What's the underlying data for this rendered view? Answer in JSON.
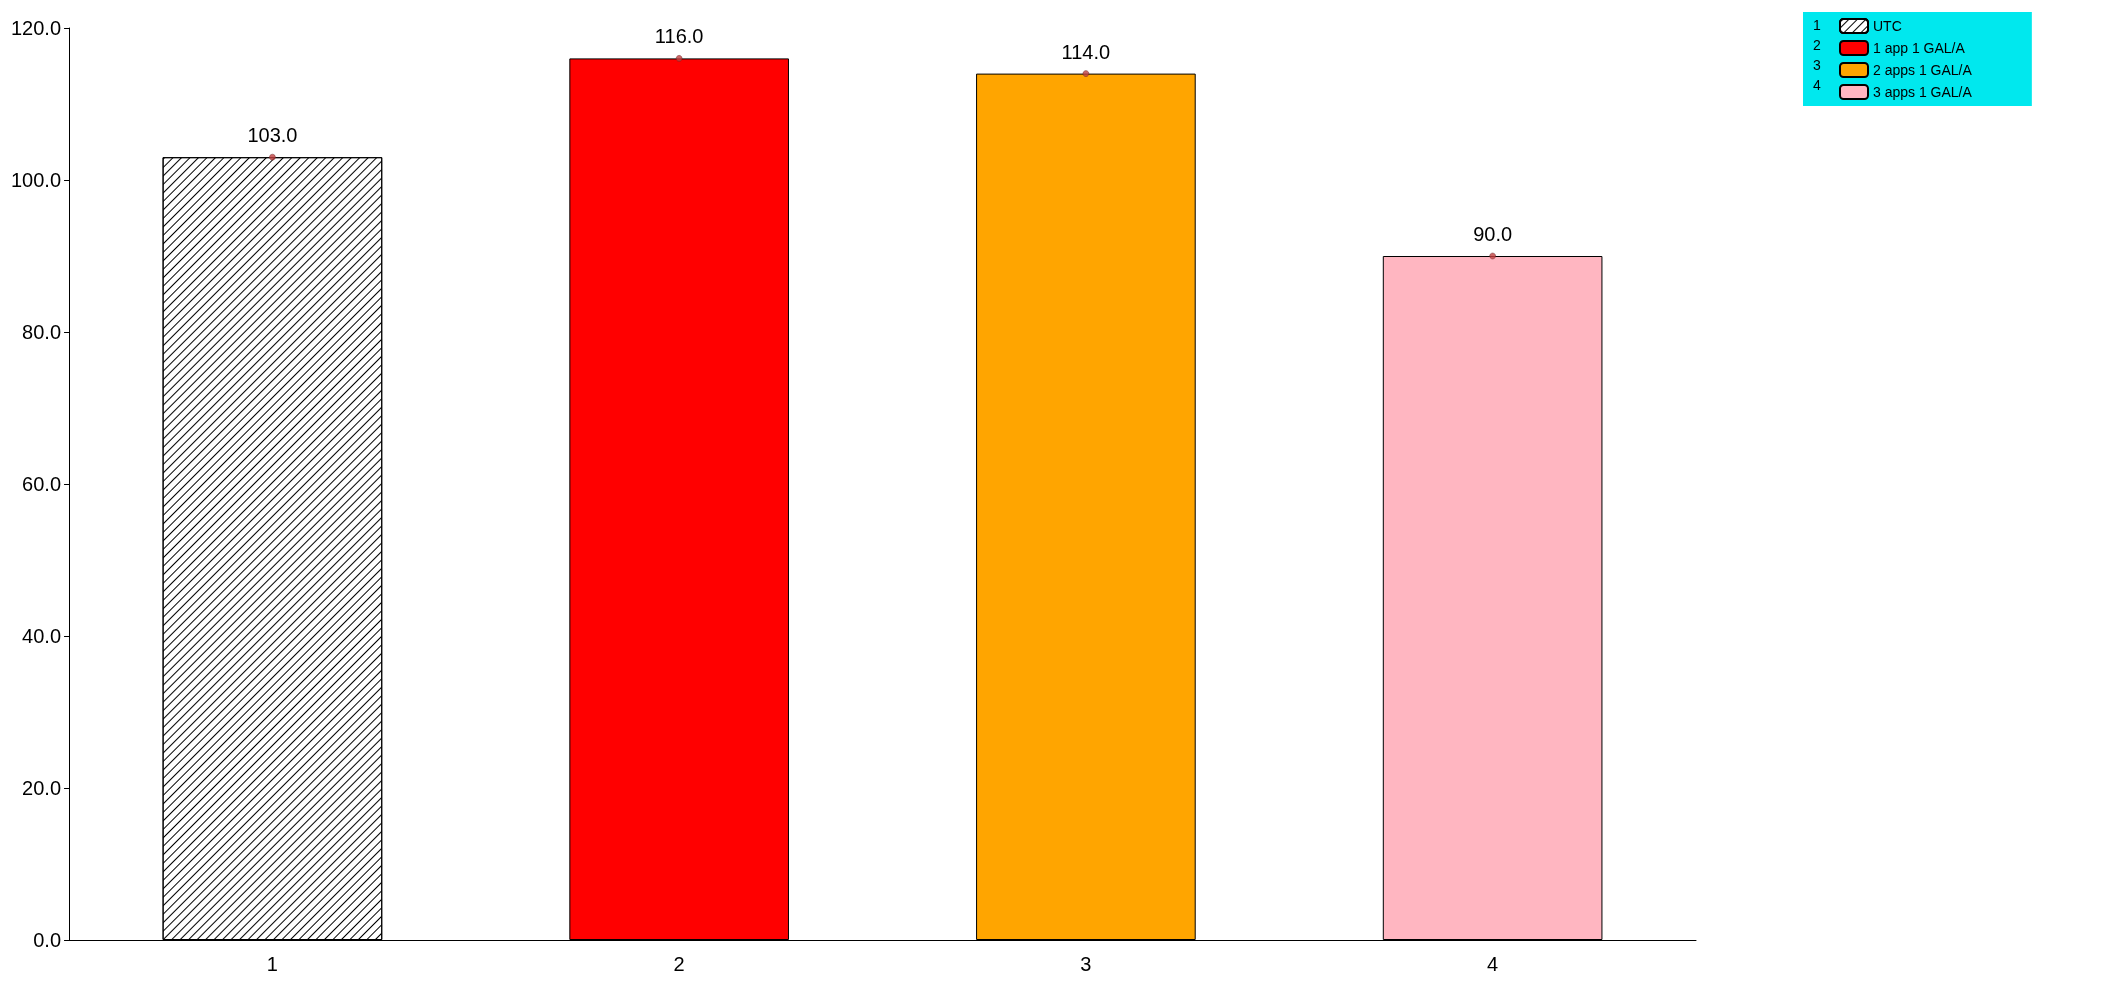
{
  "chart_data": {
    "type": "bar",
    "stacked": true,
    "categories": [
      "1",
      "2",
      "3",
      "4"
    ],
    "series": [
      {
        "name": "UTC",
        "color": "#ffffff",
        "values": [
          103,
          null,
          null,
          null
        ],
        "value_labels": [
          "103.0",
          null,
          null,
          null
        ]
      },
      {
        "name": "1 app 1 GAL/A",
        "color": "#ff0000",
        "values": [
          null,
          116,
          null,
          null
        ],
        "value_labels": [
          null,
          "116.0",
          null,
          null
        ]
      },
      {
        "name": "2 apps 1 GAL/A",
        "color": "#ffa500",
        "values": [
          null,
          null,
          114,
          null
        ],
        "value_labels": [
          null,
          null,
          "114.0",
          null
        ]
      },
      {
        "name": "3 apps 1 GAL/A",
        "color": "#ffb6c1",
        "values": [
          null,
          null,
          null,
          90
        ],
        "value_labels": [
          null,
          null,
          null,
          "90.0"
        ]
      },
      {
        "type": "scatter",
        "color": "#c04040",
        "marker": "circle",
        "x": [
          "1",
          "2",
          "3",
          "4"
        ],
        "values": [
          103,
          116,
          114,
          90
        ]
      }
    ],
    "ylim": [
      0,
      120
    ],
    "yticks": [
      {
        "value": 0,
        "label": "0.0"
      },
      {
        "value": 20,
        "label": "20.0"
      },
      {
        "value": 40,
        "label": "40.0"
      },
      {
        "value": 60,
        "label": "60.0"
      },
      {
        "value": 80,
        "label": "80.0"
      },
      {
        "value": 100,
        "label": "100.0"
      },
      {
        "value": 120,
        "label": "120.0"
      }
    ],
    "grid": false,
    "legend": "top right"
  }
}
